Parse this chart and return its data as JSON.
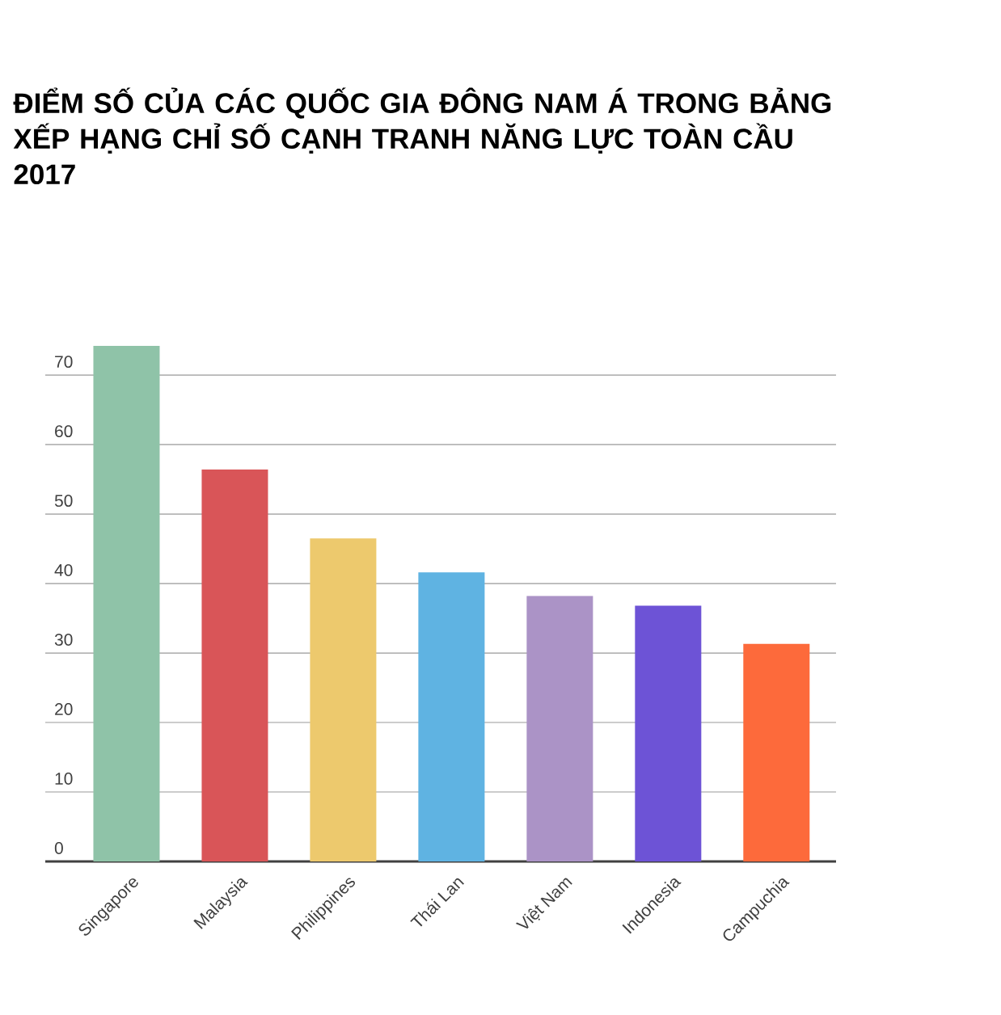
{
  "chart_data": {
    "type": "bar",
    "title": "ĐIỂM SỐ CỦA CÁC QUỐC GIA ĐÔNG NAM Á TRONG BẢNG XẾP HẠNG CHỈ SỐ CẠNH TRANH NĂNG LỰC TOÀN CẦU 2017",
    "categories": [
      "Singapore",
      "Malaysia",
      "Philippines",
      "Thái Lan",
      "Việt Nam",
      "Indonesia",
      "Campuchia"
    ],
    "values": [
      74.2,
      56.4,
      46.5,
      41.6,
      38.2,
      36.8,
      31.3
    ],
    "colors": [
      "#8fc3a8",
      "#d95558",
      "#edc96d",
      "#5fb3e2",
      "#ab93c6",
      "#6d53d6",
      "#fd6a3b"
    ],
    "ylim": [
      0,
      74.2
    ],
    "yticks": [
      0,
      10,
      20,
      30,
      40,
      50,
      60,
      70
    ],
    "grid": "y"
  }
}
